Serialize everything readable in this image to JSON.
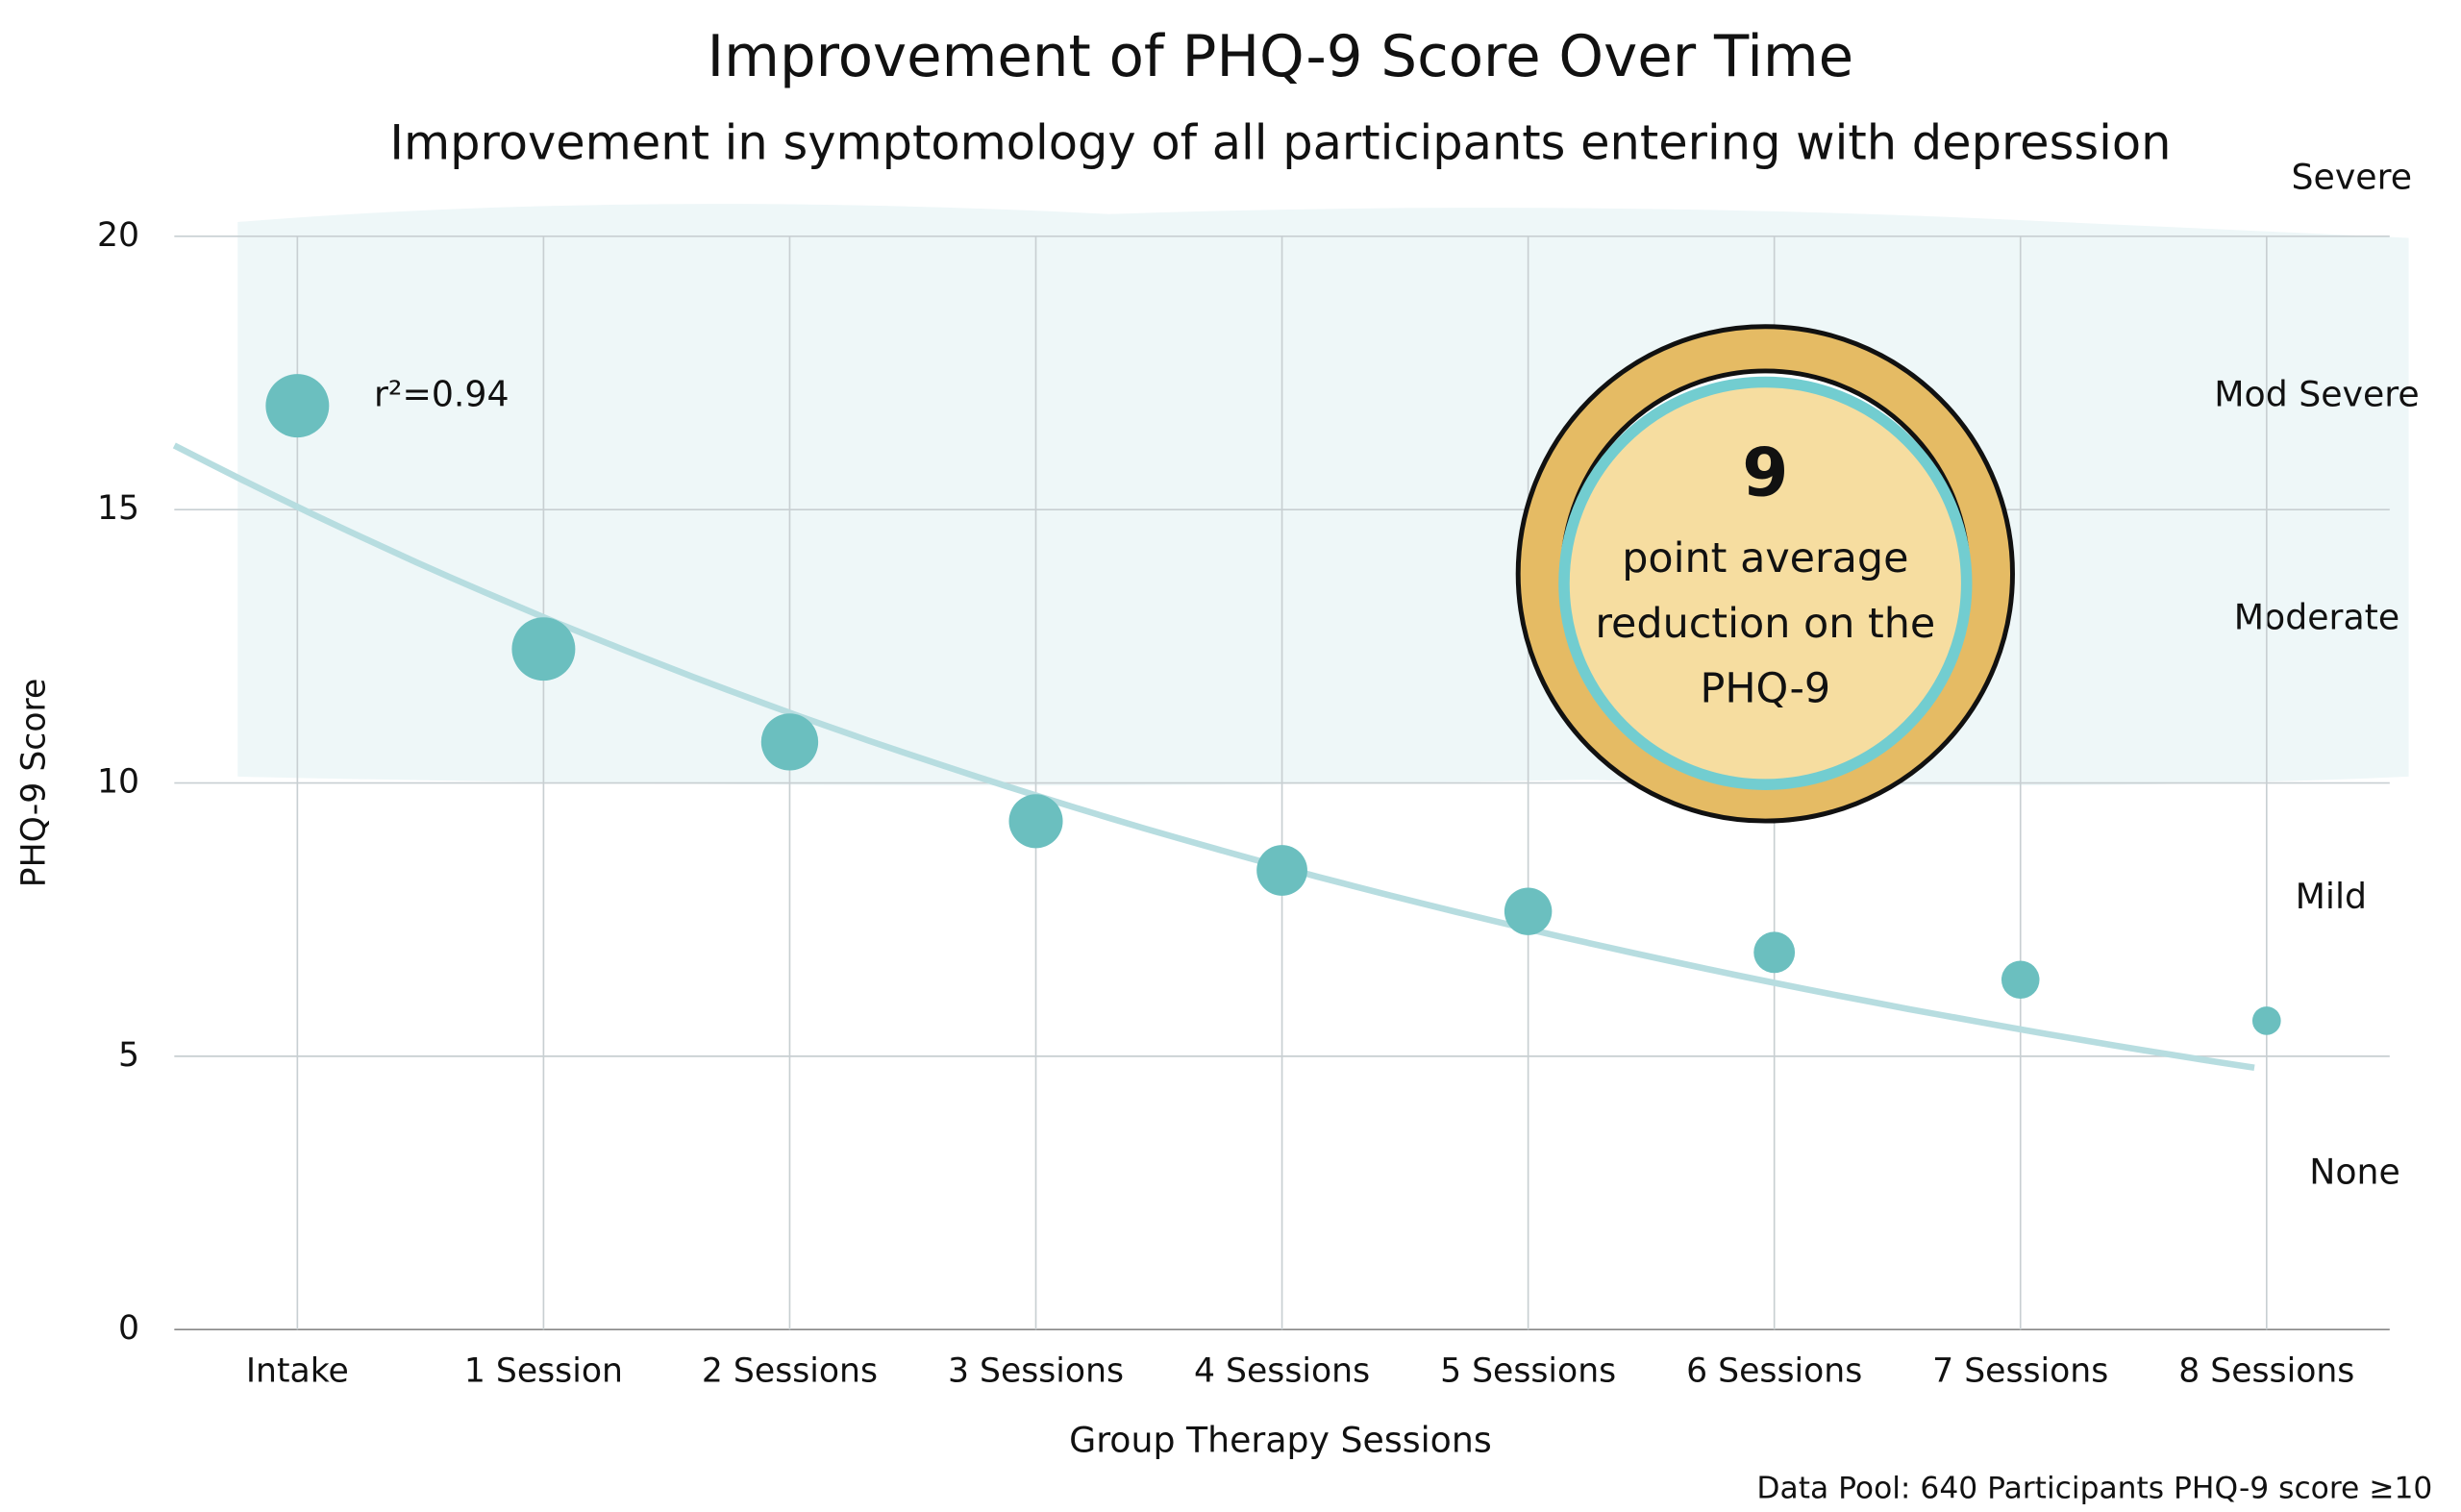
{
  "chart_data": {
    "type": "bubble",
    "title": "Improvement of PHQ-9 Score Over Time",
    "subtitle": "Improvement in symptomology of all participants entering with depression",
    "x_label": "Group Therapy Sessions",
    "y_label": "PHQ-9 Score",
    "categories": [
      "Intake",
      "1 Session",
      "2 Sessions",
      "3 Sessions",
      "4 Sessions",
      "5 Sessions",
      "6 Sessions",
      "7 Sessions",
      "8 Sessions"
    ],
    "values": [
      16.9,
      12.45,
      10.75,
      9.3,
      8.4,
      7.65,
      6.9,
      6.4,
      5.65
    ],
    "sizes": [
      20,
      20,
      18,
      17,
      16,
      15,
      13,
      12,
      9
    ],
    "color": "#6bbfbf",
    "ylim": [
      0,
      20
    ],
    "yticks": [
      0,
      5,
      10,
      15,
      20
    ],
    "grid": true,
    "trendline": {
      "a": 15.05,
      "b": -0.144,
      "x_range": [
        -0.5,
        7.95
      ],
      "color": "#b7dde0",
      "label": "r²=0.94"
    },
    "severity_labels": [
      "Severe",
      "Mod Severe",
      "Moderate",
      "Mild",
      "None"
    ],
    "callout": {
      "number": "9",
      "text": [
        "point average",
        "reduction on the",
        "PHQ-9"
      ]
    },
    "footnote": "Data Pool: 640 Participants PHQ-9 score ≥10"
  }
}
